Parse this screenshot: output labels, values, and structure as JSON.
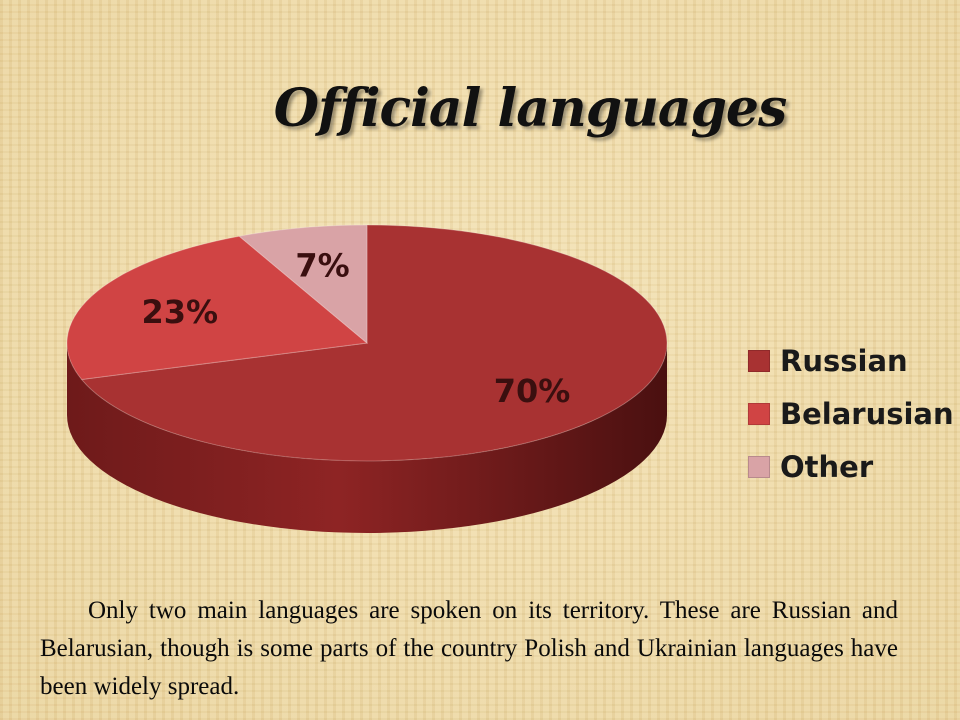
{
  "title": "Official languages",
  "colors": {
    "russian": "#a83232",
    "belarusian": "#d04444",
    "other": "#d9a3a6"
  },
  "chart_data": {
    "type": "pie",
    "title": "Official languages",
    "slices": [
      {
        "name": "Russian",
        "value": 70,
        "label": "70%",
        "color": "#a83232"
      },
      {
        "name": "Belarusian",
        "value": 23,
        "label": "23%",
        "color": "#d04444"
      },
      {
        "name": "Other",
        "value": 7,
        "label": "7%",
        "color": "#d9a3a6"
      }
    ],
    "legend_position": "right",
    "style": "3d"
  },
  "legend": [
    {
      "label": "Russian",
      "color": "#a83232"
    },
    {
      "label": "Belarusian",
      "color": "#d04444"
    },
    {
      "label": "Other",
      "color": "#d9a3a6"
    }
  ],
  "caption": "Only two main languages are spoken on its territory. These are Russian and Belarusian, though is some parts of the country Polish and Ukrainian languages have been widely spread."
}
